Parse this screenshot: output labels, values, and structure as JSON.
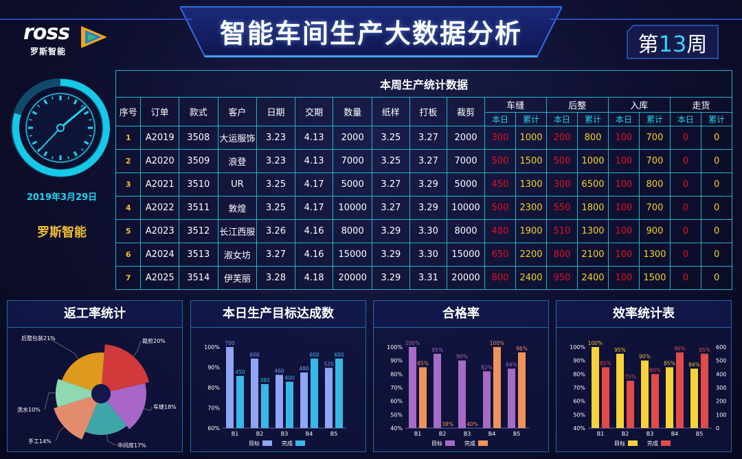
{
  "header": {
    "title": "智能车间生产大数据分析",
    "logo_text": "ross",
    "logo_sub": "罗斯智能",
    "week_prefix": "第",
    "week_num": "13",
    "week_suffix": "周"
  },
  "left": {
    "date": "2019年3月29日",
    "brand": "罗斯智能"
  },
  "table": {
    "caption": "本周生产统计数据",
    "headers": [
      "序号",
      "订单",
      "款式",
      "客户",
      "日期",
      "交期",
      "数量",
      "纸样",
      "打板",
      "裁剪"
    ],
    "groups": [
      "车缝",
      "后整",
      "入库",
      "走货"
    ],
    "sub": [
      "本日",
      "累计"
    ],
    "rows": [
      {
        "idx": "1",
        "order": "A2019",
        "style": "3508",
        "customer": "大运服饰",
        "date": "3.23",
        "due": "4.13",
        "qty": "2000",
        "paper": "3.25",
        "board": "3.27",
        "cut": "2000",
        "v": [
          "300",
          "1000",
          "200",
          "800",
          "100",
          "700",
          "0",
          "0"
        ]
      },
      {
        "idx": "2",
        "order": "A2020",
        "style": "3509",
        "customer": "浪登",
        "date": "3.23",
        "due": "4.13",
        "qty": "7000",
        "paper": "3.25",
        "board": "3.27",
        "cut": "7000",
        "v": [
          "500",
          "1500",
          "500",
          "1000",
          "100",
          "700",
          "0",
          "0"
        ]
      },
      {
        "idx": "3",
        "order": "A2021",
        "style": "3510",
        "customer": "UR",
        "date": "3.25",
        "due": "4.17",
        "qty": "5000",
        "paper": "3.27",
        "board": "3.29",
        "cut": "5000",
        "v": [
          "450",
          "1300",
          "300",
          "6500",
          "100",
          "800",
          "0",
          "0"
        ]
      },
      {
        "idx": "4",
        "order": "A2022",
        "style": "3511",
        "customer": "敦煌",
        "date": "3.25",
        "due": "4.17",
        "qty": "10000",
        "paper": "3.27",
        "board": "3.29",
        "cut": "10000",
        "v": [
          "500",
          "2300",
          "550",
          "1800",
          "100",
          "700",
          "0",
          "0"
        ]
      },
      {
        "idx": "5",
        "order": "A2023",
        "style": "3512",
        "customer": "长江西服",
        "date": "3.26",
        "due": "4.16",
        "qty": "8000",
        "paper": "3.29",
        "board": "3.30",
        "cut": "8000",
        "v": [
          "480",
          "1900",
          "510",
          "1300",
          "100",
          "900",
          "0",
          "0"
        ]
      },
      {
        "idx": "6",
        "order": "A2024",
        "style": "3513",
        "customer": "淑女坊",
        "date": "3.27",
        "due": "4.16",
        "qty": "15000",
        "paper": "3.29",
        "board": "3.30",
        "cut": "15000",
        "v": [
          "650",
          "2200",
          "800",
          "2100",
          "100",
          "1300",
          "0",
          "0"
        ]
      },
      {
        "idx": "7",
        "order": "A2025",
        "style": "3514",
        "customer": "伊芙丽",
        "date": "3.28",
        "due": "4.18",
        "qty": "20000",
        "paper": "3.29",
        "board": "3.31",
        "cut": "20000",
        "v": [
          "800",
          "2400",
          "950",
          "2400",
          "100",
          "1500",
          "0",
          "0"
        ]
      }
    ]
  },
  "panels": {
    "p1": "返工率统计",
    "p2": "本日生产目标达成数",
    "p3": "合格率",
    "p4": "效率统计表"
  },
  "colors": {
    "accent": "#1ed6f0",
    "gold": "#f2c131",
    "red": "#e4101f",
    "yellow": "#f2d528"
  },
  "chart_data": [
    {
      "type": "pie",
      "title": "返工率统计",
      "slices": [
        {
          "label": "裁剪",
          "value": 20,
          "color": "#d13a3a"
        },
        {
          "label": "车缝",
          "value": 18,
          "color": "#a866c9"
        },
        {
          "label": "中间库",
          "value": 17,
          "color": "#3fa6a8"
        },
        {
          "label": "手工",
          "value": 14,
          "color": "#e38b6d"
        },
        {
          "label": "洗水",
          "value": 10,
          "color": "#8fd8b0"
        },
        {
          "label": "后整包装",
          "value": 21,
          "color": "#dd9a1c"
        }
      ],
      "labels": [
        "裁剪20%",
        "车缝18%",
        "中间库17%",
        "手工14%",
        "洗水10%",
        "后整包装21%"
      ]
    },
    {
      "type": "bar",
      "title": "本日生产目标达成数",
      "categories": [
        "B1",
        "B2",
        "B3",
        "B4",
        "B5"
      ],
      "ylim": [
        60,
        100
      ],
      "yticks": [
        "100%",
        "90%",
        "80%",
        "70%",
        "60%"
      ],
      "series": [
        {
          "name": "目标",
          "values": [
            700,
            600,
            460,
            480,
            520
          ],
          "color": "#8fa5f5",
          "labelColor": "#7d95f5"
        },
        {
          "name": "完成",
          "values": [
            450,
            380,
            400,
            600,
            600
          ],
          "color": "#36b9e8",
          "labelColor": "#36b9e8"
        }
      ],
      "labels": {
        "a": [
          "700",
          "600",
          "460",
          "480",
          "520"
        ],
        "b": [
          "450",
          "380",
          "400",
          "600",
          "600"
        ]
      }
    },
    {
      "type": "bar",
      "title": "合格率",
      "categories": [
        "B1",
        "B2",
        "B3",
        "B4",
        "B5"
      ],
      "ylim": [
        40,
        100
      ],
      "yticks": [
        "100%",
        "90%",
        "80%",
        "70%",
        "60%",
        "50%",
        "40%"
      ],
      "series": [
        {
          "name": "目标",
          "values": [
            100,
            95,
            90,
            82,
            84
          ],
          "color": "#a66bc6",
          "labelColor": "#a66bc6"
        },
        {
          "name": "完成",
          "values": [
            85,
            38,
            40,
            100,
            96
          ],
          "color": "#f0935a",
          "labelColor": "#f0935a"
        }
      ],
      "labels": {
        "a": [
          "100%",
          "95%",
          "90%",
          "82%",
          "84%"
        ],
        "b": [
          "85%",
          "38%",
          "40%",
          "100%",
          "96%"
        ]
      }
    },
    {
      "type": "bar",
      "title": "效率统计表",
      "categories": [
        "B1",
        "B2",
        "B3",
        "B4",
        "B5"
      ],
      "ylim": [
        40,
        100
      ],
      "yticks": [
        "100%",
        "90%",
        "80%",
        "70%",
        "60%",
        "50%",
        "40%"
      ],
      "y2ticks": [
        "600",
        "500",
        "400",
        "300",
        "200",
        "100",
        "0"
      ],
      "series": [
        {
          "name": "目标",
          "values": [
            100,
            95,
            90,
            85,
            84
          ],
          "color": "#f7d33b",
          "labelColor": "#f2c131"
        },
        {
          "name": "完成",
          "values": [
            85,
            75,
            80,
            96,
            95
          ],
          "color": "#e24a4a",
          "labelColor": "#e24a4a"
        }
      ],
      "labels": {
        "a": [
          "100%",
          "95%",
          "90%",
          "85%",
          "84%"
        ],
        "b": [
          "85%",
          "75%",
          "80%",
          "96%",
          "95%"
        ]
      }
    }
  ]
}
